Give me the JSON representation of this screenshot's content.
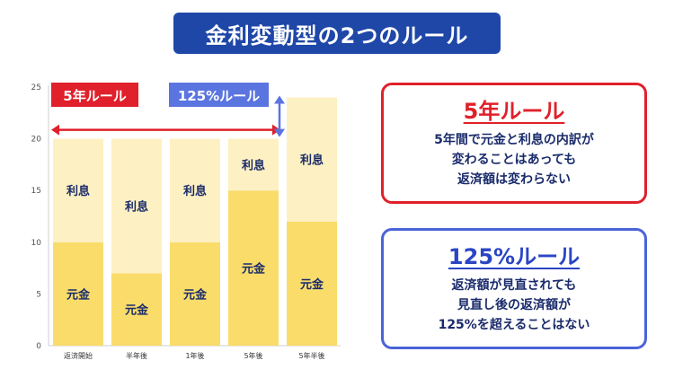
{
  "title": "金利変動型の2つのルール",
  "chart_data": {
    "type": "bar",
    "stacked": true,
    "categories": [
      "返済開始",
      "半年後",
      "1年後",
      "5年後",
      "5年半後"
    ],
    "series": [
      {
        "name": "元金",
        "label": "元金",
        "values": [
          10,
          7,
          10,
          15,
          12
        ],
        "color": "#f9dc6a"
      },
      {
        "name": "利息",
        "label": "利息",
        "values": [
          10,
          13,
          10,
          5,
          12
        ],
        "color": "#fdf0c2"
      }
    ],
    "ylim": [
      0,
      25
    ],
    "yticks": [
      0,
      5,
      10,
      15,
      20,
      25
    ],
    "grid": false,
    "annotations": {
      "five_year_label": "5年ルール",
      "five_year_color": "#e0202a",
      "five_year_span": [
        "返済開始",
        "5年後"
      ],
      "pct_label": "125%ルール",
      "pct_color": "#5a74e0",
      "pct_range": [
        20,
        24
      ]
    }
  },
  "cards": {
    "five_year": {
      "title": "5年ルール",
      "lines": [
        "5年間で元金と利息の内訳が",
        "変わることはあっても",
        "返済額は変わらない"
      ],
      "color": "#e0202a"
    },
    "pct125": {
      "title": "125%ルール",
      "lines": [
        "返済額が見直されても",
        "見直し後の返済額が",
        "125%を超えることはない"
      ],
      "color": "#4a63d8"
    }
  }
}
